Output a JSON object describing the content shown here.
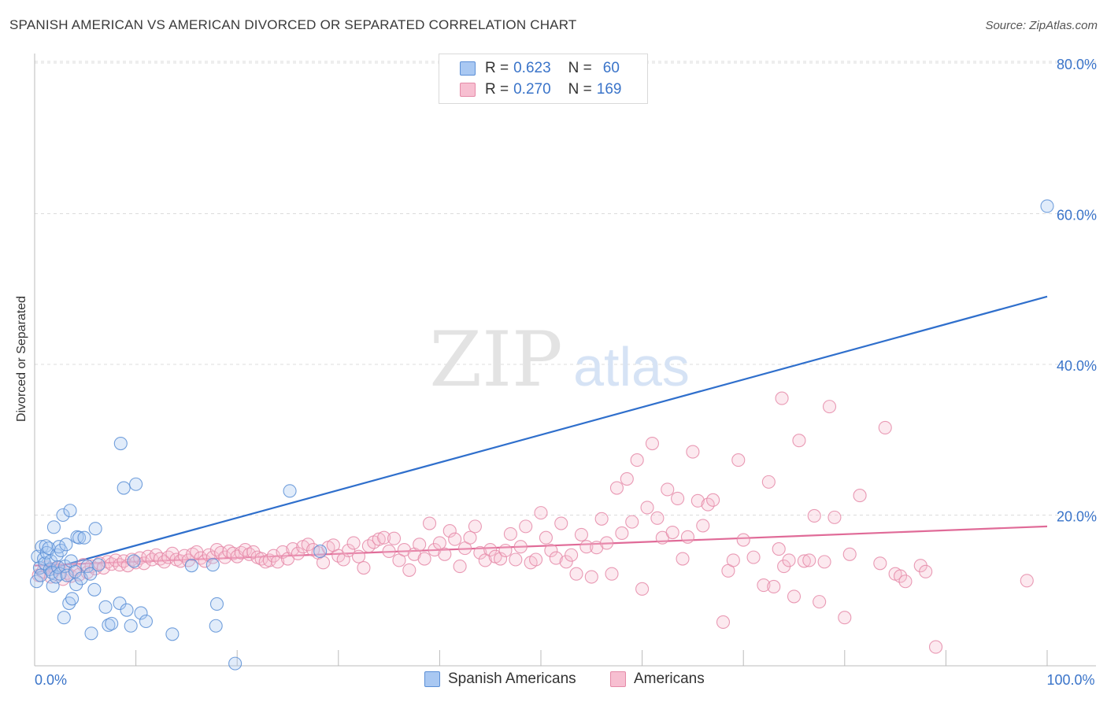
{
  "header": {
    "title": "SPANISH AMERICAN VS AMERICAN DIVORCED OR SEPARATED CORRELATION CHART",
    "source": "Source: ZipAtlas.com"
  },
  "watermark": {
    "zip": "ZIP",
    "atlas": "atlas"
  },
  "legend": {
    "rows": [
      {
        "r_label": "R = ",
        "r_value": "0.623",
        "n_label": "N = ",
        "n_value": "60",
        "color": "#a9c8f2",
        "stroke": "#5b8fd6"
      },
      {
        "r_label": "R = ",
        "r_value": "0.270",
        "n_label": "N = ",
        "n_value": "169",
        "color": "#f7bfd1",
        "stroke": "#e58aa8"
      }
    ]
  },
  "bottom_legend": [
    {
      "label": "Spanish Americans",
      "color": "#a9c8f2",
      "stroke": "#5b8fd6"
    },
    {
      "label": "Americans",
      "color": "#f7bfd1",
      "stroke": "#e58aa8"
    }
  ],
  "chart_data": {
    "type": "scatter",
    "title": "SPANISH AMERICAN VS AMERICAN DIVORCED OR SEPARATED CORRELATION CHART",
    "xlabel": "",
    "ylabel": "Divorced or Separated",
    "xlim": [
      0,
      100
    ],
    "ylim": [
      0,
      80
    ],
    "x_tick_labels": {
      "0": "0.0%",
      "100": "100.0%"
    },
    "y_ticks": [
      20,
      40,
      60,
      80
    ],
    "y_tick_labels": [
      "20.0%",
      "40.0%",
      "60.0%",
      "80.0%"
    ],
    "x_minor_ticks": [
      10,
      20,
      30,
      40,
      50,
      60,
      70,
      80,
      90,
      100
    ],
    "grid": true,
    "series": [
      {
        "name": "Spanish Americans",
        "color": "#5b8fd6",
        "fill": "#a9c8f2",
        "trend": {
          "x": [
            0,
            100
          ],
          "y": [
            12.3,
            49.0
          ],
          "color": "#2f6fcc"
        },
        "points": [
          [
            0.2,
            11.2
          ],
          [
            0.3,
            14.5
          ],
          [
            0.5,
            13.0
          ],
          [
            0.6,
            12.0
          ],
          [
            0.7,
            15.8
          ],
          [
            0.9,
            14.2
          ],
          [
            1.0,
            13.6
          ],
          [
            1.1,
            15.9
          ],
          [
            1.2,
            15.0
          ],
          [
            1.4,
            15.6
          ],
          [
            1.5,
            12.8
          ],
          [
            1.6,
            13.9
          ],
          [
            1.7,
            12.4
          ],
          [
            1.8,
            10.6
          ],
          [
            1.9,
            18.4
          ],
          [
            2.1,
            11.8
          ],
          [
            2.2,
            14.7
          ],
          [
            2.3,
            13.1
          ],
          [
            2.4,
            15.8
          ],
          [
            2.5,
            12.2
          ],
          [
            2.6,
            15.3
          ],
          [
            2.8,
            20.0
          ],
          [
            2.9,
            6.4
          ],
          [
            3.0,
            13.2
          ],
          [
            3.1,
            16.1
          ],
          [
            3.2,
            12.0
          ],
          [
            3.4,
            8.3
          ],
          [
            3.5,
            20.6
          ],
          [
            3.6,
            13.9
          ],
          [
            3.7,
            8.9
          ],
          [
            4.0,
            12.5
          ],
          [
            4.1,
            10.8
          ],
          [
            4.2,
            17.1
          ],
          [
            4.4,
            17.0
          ],
          [
            4.6,
            11.6
          ],
          [
            4.9,
            17.0
          ],
          [
            5.2,
            13.2
          ],
          [
            5.5,
            12.2
          ],
          [
            5.6,
            4.3
          ],
          [
            5.9,
            10.1
          ],
          [
            6.0,
            18.2
          ],
          [
            6.3,
            13.4
          ],
          [
            7.0,
            7.8
          ],
          [
            7.3,
            5.4
          ],
          [
            7.6,
            5.6
          ],
          [
            8.4,
            8.3
          ],
          [
            8.5,
            29.5
          ],
          [
            8.8,
            23.6
          ],
          [
            9.1,
            7.4
          ],
          [
            9.5,
            5.3
          ],
          [
            9.8,
            13.9
          ],
          [
            10.0,
            24.1
          ],
          [
            10.5,
            7.0
          ],
          [
            11.0,
            5.9
          ],
          [
            13.6,
            4.2
          ],
          [
            15.5,
            13.3
          ],
          [
            17.6,
            13.4
          ],
          [
            17.9,
            5.3
          ],
          [
            18.0,
            8.2
          ],
          [
            19.8,
            0.3
          ],
          [
            25.2,
            23.2
          ],
          [
            28.2,
            15.2
          ],
          [
            100.0,
            61.0
          ]
        ]
      },
      {
        "name": "Americans",
        "color": "#e58aa8",
        "fill": "#f7bfd1",
        "trend": {
          "x": [
            0,
            100
          ],
          "y": [
            13.3,
            18.5
          ],
          "color": "#e06b98"
        },
        "points": [
          [
            0.4,
            12.0
          ],
          [
            0.8,
            12.5
          ],
          [
            1.2,
            13.1
          ],
          [
            1.6,
            11.8
          ],
          [
            2.0,
            12.9
          ],
          [
            2.4,
            13.0
          ],
          [
            2.8,
            11.5
          ],
          [
            3.2,
            12.3
          ],
          [
            3.6,
            11.9
          ],
          [
            4.0,
            12.8
          ],
          [
            4.4,
            12.1
          ],
          [
            4.8,
            13.4
          ],
          [
            5.2,
            12.4
          ],
          [
            5.6,
            13.2
          ],
          [
            6.0,
            12.9
          ],
          [
            6.4,
            13.6
          ],
          [
            6.8,
            13.0
          ],
          [
            7.2,
            13.8
          ],
          [
            7.6,
            13.5
          ],
          [
            8.0,
            14.0
          ],
          [
            8.4,
            13.4
          ],
          [
            8.8,
            13.9
          ],
          [
            9.2,
            13.3
          ],
          [
            9.6,
            14.1
          ],
          [
            10.0,
            13.7
          ],
          [
            10.4,
            14.3
          ],
          [
            10.8,
            13.6
          ],
          [
            11.2,
            14.5
          ],
          [
            11.6,
            14.1
          ],
          [
            12.0,
            14.7
          ],
          [
            12.4,
            14.2
          ],
          [
            12.8,
            13.8
          ],
          [
            13.2,
            14.4
          ],
          [
            13.6,
            14.9
          ],
          [
            14.0,
            14.1
          ],
          [
            14.4,
            13.9
          ],
          [
            14.8,
            14.6
          ],
          [
            15.2,
            14.0
          ],
          [
            15.6,
            14.8
          ],
          [
            16.0,
            15.1
          ],
          [
            16.4,
            14.3
          ],
          [
            16.8,
            13.9
          ],
          [
            17.2,
            14.7
          ],
          [
            17.6,
            14.4
          ],
          [
            18.0,
            15.4
          ],
          [
            18.4,
            15.0
          ],
          [
            18.8,
            14.4
          ],
          [
            19.2,
            15.2
          ],
          [
            19.6,
            14.9
          ],
          [
            20.0,
            14.5
          ],
          [
            20.4,
            15.0
          ],
          [
            20.8,
            15.4
          ],
          [
            21.2,
            14.8
          ],
          [
            21.6,
            15.1
          ],
          [
            22.0,
            14.4
          ],
          [
            22.4,
            14.2
          ],
          [
            22.8,
            13.8
          ],
          [
            23.2,
            14.0
          ],
          [
            23.6,
            14.6
          ],
          [
            24.0,
            13.8
          ],
          [
            24.5,
            15.1
          ],
          [
            25.0,
            14.2
          ],
          [
            25.5,
            15.5
          ],
          [
            26.0,
            14.9
          ],
          [
            26.5,
            15.8
          ],
          [
            27.0,
            16.1
          ],
          [
            27.5,
            15.4
          ],
          [
            28.0,
            15.0
          ],
          [
            28.5,
            13.7
          ],
          [
            29.0,
            15.7
          ],
          [
            29.5,
            16.0
          ],
          [
            30.0,
            14.6
          ],
          [
            30.5,
            14.1
          ],
          [
            31.0,
            15.3
          ],
          [
            31.5,
            16.3
          ],
          [
            32.0,
            14.5
          ],
          [
            32.5,
            13.0
          ],
          [
            33.0,
            15.9
          ],
          [
            33.5,
            16.4
          ],
          [
            34.0,
            16.8
          ],
          [
            34.5,
            17.0
          ],
          [
            35.0,
            15.2
          ],
          [
            35.5,
            16.9
          ],
          [
            36.0,
            14.0
          ],
          [
            36.5,
            15.4
          ],
          [
            37.0,
            12.7
          ],
          [
            37.5,
            14.8
          ],
          [
            38.0,
            16.1
          ],
          [
            38.5,
            14.2
          ],
          [
            39.0,
            18.9
          ],
          [
            39.5,
            15.4
          ],
          [
            40.0,
            16.3
          ],
          [
            40.5,
            14.8
          ],
          [
            41.0,
            17.9
          ],
          [
            41.5,
            16.8
          ],
          [
            42.0,
            13.2
          ],
          [
            42.5,
            15.6
          ],
          [
            43.0,
            17.0
          ],
          [
            43.5,
            18.5
          ],
          [
            44.0,
            15.0
          ],
          [
            44.5,
            14.0
          ],
          [
            45.0,
            15.4
          ],
          [
            45.5,
            14.5
          ],
          [
            46.0,
            14.2
          ],
          [
            46.5,
            15.3
          ],
          [
            47.0,
            17.5
          ],
          [
            47.5,
            14.1
          ],
          [
            48.0,
            15.8
          ],
          [
            48.5,
            18.5
          ],
          [
            49.0,
            13.7
          ],
          [
            49.5,
            14.1
          ],
          [
            50.0,
            20.3
          ],
          [
            50.5,
            17.0
          ],
          [
            51.0,
            15.3
          ],
          [
            51.5,
            14.3
          ],
          [
            52.0,
            18.9
          ],
          [
            52.5,
            13.8
          ],
          [
            53.0,
            14.7
          ],
          [
            53.5,
            12.2
          ],
          [
            54.0,
            17.4
          ],
          [
            54.5,
            15.8
          ],
          [
            55.0,
            11.8
          ],
          [
            55.5,
            15.7
          ],
          [
            56.0,
            19.5
          ],
          [
            56.5,
            16.3
          ],
          [
            57.0,
            12.2
          ],
          [
            57.5,
            23.6
          ],
          [
            58.0,
            17.6
          ],
          [
            58.5,
            24.8
          ],
          [
            59.0,
            19.1
          ],
          [
            59.5,
            27.3
          ],
          [
            60.0,
            10.2
          ],
          [
            60.5,
            21.0
          ],
          [
            61.0,
            29.5
          ],
          [
            61.5,
            19.6
          ],
          [
            62.0,
            17.0
          ],
          [
            62.5,
            23.4
          ],
          [
            63.0,
            17.7
          ],
          [
            63.5,
            22.2
          ],
          [
            64.0,
            14.2
          ],
          [
            64.5,
            17.1
          ],
          [
            65.0,
            28.4
          ],
          [
            65.5,
            21.9
          ],
          [
            66.0,
            18.6
          ],
          [
            66.5,
            21.4
          ],
          [
            67.0,
            22.0
          ],
          [
            68.0,
            5.8
          ],
          [
            68.5,
            12.6
          ],
          [
            69.0,
            14.0
          ],
          [
            69.5,
            27.3
          ],
          [
            70.0,
            16.7
          ],
          [
            71.0,
            14.4
          ],
          [
            72.0,
            10.7
          ],
          [
            72.5,
            24.4
          ],
          [
            73.0,
            10.5
          ],
          [
            73.5,
            15.5
          ],
          [
            74.0,
            13.2
          ],
          [
            74.5,
            14.0
          ],
          [
            75.0,
            9.2
          ],
          [
            75.5,
            29.9
          ],
          [
            76.0,
            13.9
          ],
          [
            76.5,
            14.0
          ],
          [
            77.0,
            19.9
          ],
          [
            77.5,
            8.5
          ],
          [
            78.0,
            13.8
          ],
          [
            78.5,
            34.4
          ],
          [
            79.0,
            19.7
          ],
          [
            80.0,
            6.4
          ],
          [
            80.5,
            14.8
          ],
          [
            81.5,
            22.6
          ],
          [
            83.5,
            13.6
          ],
          [
            84.0,
            31.6
          ],
          [
            85.0,
            12.2
          ],
          [
            85.5,
            11.9
          ],
          [
            86.0,
            11.2
          ],
          [
            87.5,
            13.3
          ],
          [
            88.0,
            12.5
          ],
          [
            89.0,
            2.5
          ],
          [
            98.0,
            11.3
          ],
          [
            73.8,
            35.5
          ]
        ]
      }
    ]
  }
}
